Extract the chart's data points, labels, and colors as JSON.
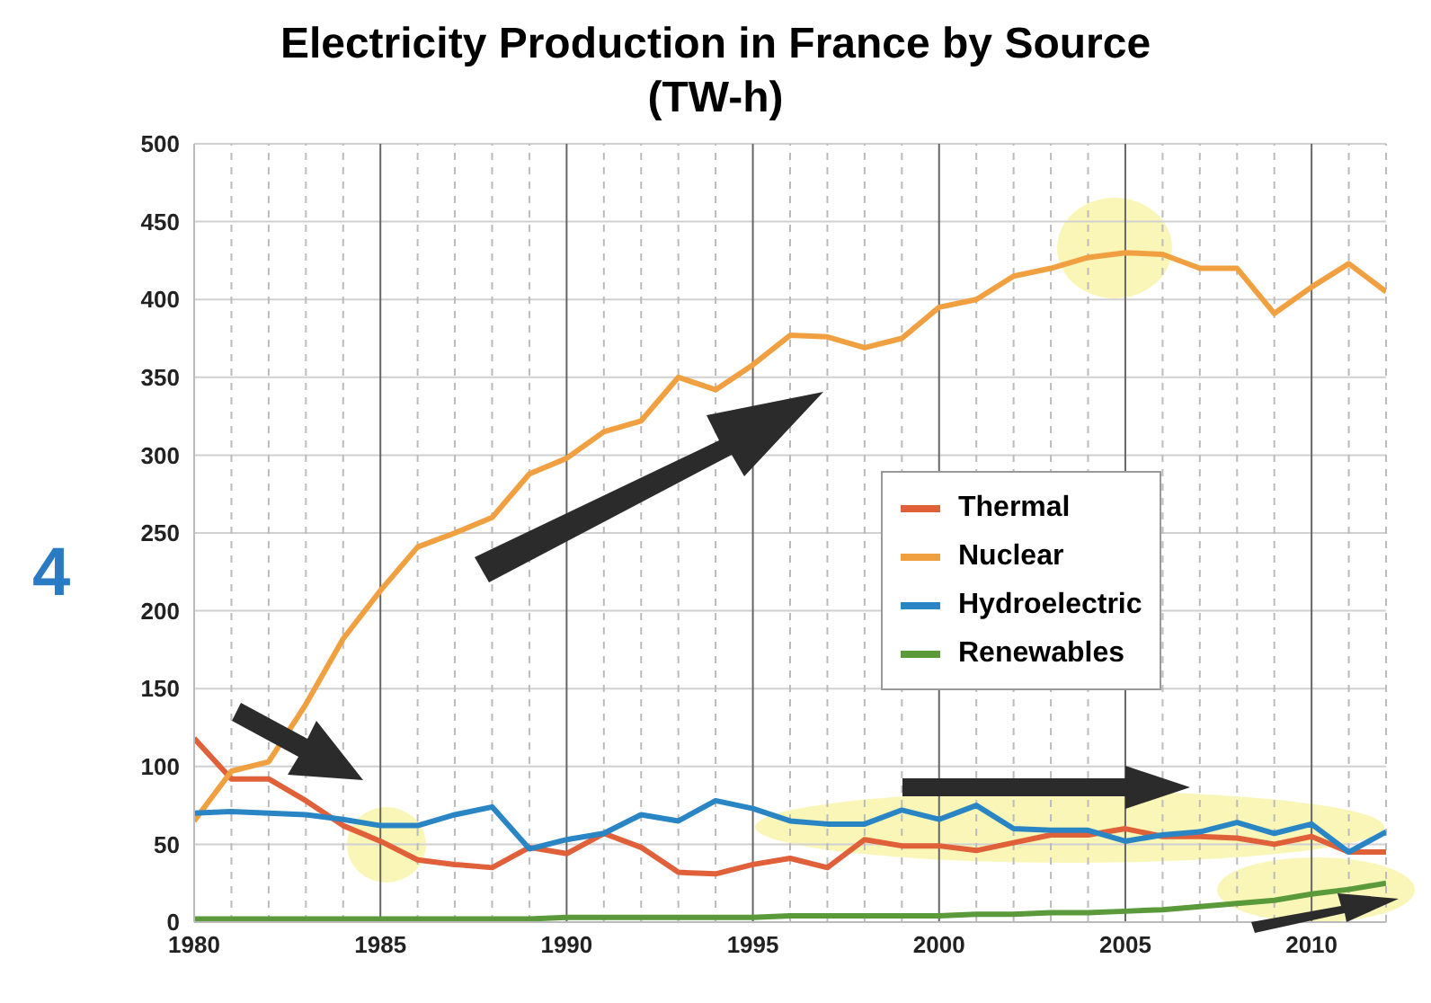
{
  "chart_data": {
    "type": "line",
    "title": "Electricity Production in France by Source\n(TW-h)",
    "annotations": [
      "4"
    ],
    "x": [
      1980,
      1981,
      1982,
      1983,
      1984,
      1985,
      1986,
      1987,
      1988,
      1989,
      1990,
      1991,
      1992,
      1993,
      1994,
      1995,
      1996,
      1997,
      1998,
      1999,
      2000,
      2001,
      2002,
      2003,
      2004,
      2005,
      2006,
      2007,
      2008,
      2009,
      2010,
      2011,
      2012
    ],
    "series": [
      {
        "name": "Thermal",
        "color": "#e0603a",
        "values": [
          118,
          92,
          92,
          78,
          62,
          52,
          40,
          37,
          35,
          48,
          44,
          57,
          48,
          32,
          31,
          37,
          41,
          35,
          53,
          49,
          49,
          46,
          51,
          56,
          56,
          60,
          55,
          55,
          54,
          50,
          55,
          45,
          45
        ]
      },
      {
        "name": "Nuclear",
        "color": "#f0a040",
        "values": [
          65,
          97,
          103,
          140,
          182,
          213,
          241,
          250,
          260,
          288,
          298,
          315,
          322,
          350,
          342,
          358,
          377,
          376,
          369,
          375,
          395,
          400,
          415,
          420,
          427,
          430,
          429,
          420,
          420,
          391,
          408,
          423,
          405
        ]
      },
      {
        "name": "Hydroelectric",
        "color": "#2a85c4",
        "values": [
          70,
          71,
          70,
          69,
          66,
          62,
          62,
          69,
          74,
          47,
          53,
          57,
          69,
          65,
          78,
          73,
          65,
          63,
          63,
          72,
          66,
          75,
          60,
          59,
          59,
          52,
          56,
          58,
          64,
          57,
          63,
          45,
          58
        ]
      },
      {
        "name": "Renewables",
        "color": "#5a9a3a",
        "values": [
          2,
          2,
          2,
          2,
          2,
          2,
          2,
          2,
          2,
          2,
          3,
          3,
          3,
          3,
          3,
          3,
          4,
          4,
          4,
          4,
          4,
          5,
          5,
          6,
          6,
          7,
          8,
          10,
          12,
          14,
          18,
          21,
          25
        ]
      }
    ],
    "xlim": [
      1980,
      2012
    ],
    "xticks": [
      1980,
      {
        "value": 1981,
        "label": null
      },
      {
        "value": 1982,
        "label": null
      },
      {
        "value": 1983,
        "label": null
      },
      {
        "value": 1984,
        "label": null
      },
      1985,
      {
        "value": 1986,
        "label": null
      },
      {
        "value": 1987,
        "label": null
      },
      {
        "value": 1988,
        "label": null
      },
      {
        "value": 1989,
        "label": null
      },
      1990,
      {
        "value": 1991,
        "label": null
      },
      {
        "value": 1992,
        "label": null
      },
      {
        "value": 1993,
        "label": null
      },
      {
        "value": 1994,
        "label": null
      },
      1995,
      {
        "value": 1996,
        "label": null
      },
      {
        "value": 1997,
        "label": null
      },
      {
        "value": 1998,
        "label": null
      },
      {
        "value": 1999,
        "label": null
      },
      2000,
      {
        "value": 2001,
        "label": null
      },
      {
        "value": 2002,
        "label": null
      },
      {
        "value": 2003,
        "label": null
      },
      {
        "value": 2004,
        "label": null
      },
      2005,
      {
        "value": 2006,
        "label": null
      },
      {
        "value": 2007,
        "label": null
      },
      {
        "value": 2008,
        "label": null
      },
      {
        "value": 2009,
        "label": null
      },
      2010,
      {
        "value": 2011,
        "label": null
      },
      {
        "value": 2012,
        "label": null
      }
    ],
    "ylim": [
      0,
      500
    ],
    "yticks": [
      0,
      50,
      100,
      150,
      200,
      250,
      300,
      350,
      400,
      450,
      500
    ],
    "grid": true,
    "legend": "right",
    "marker": "none",
    "line_style": "solid"
  }
}
